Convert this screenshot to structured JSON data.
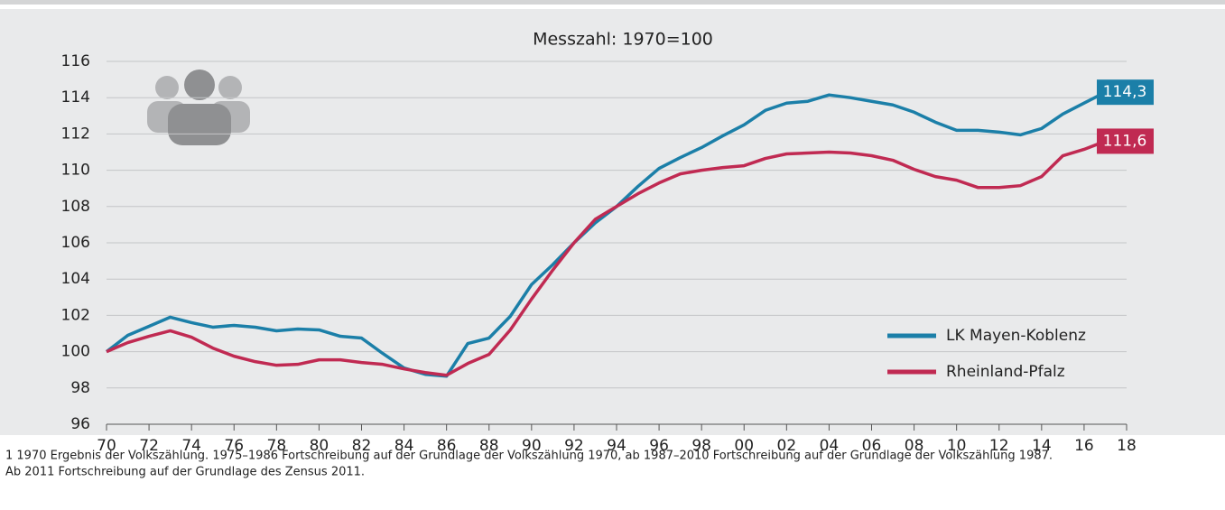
{
  "chart_data": {
    "type": "line",
    "title": "Messzahl: 1970=100",
    "x": [
      1970,
      1971,
      1972,
      1973,
      1974,
      1975,
      1976,
      1977,
      1978,
      1979,
      1980,
      1981,
      1982,
      1983,
      1984,
      1985,
      1986,
      1987,
      1988,
      1989,
      1990,
      1991,
      1992,
      1993,
      1994,
      1995,
      1996,
      1997,
      1998,
      1999,
      2000,
      2001,
      2002,
      2003,
      2004,
      2005,
      2006,
      2007,
      2008,
      2009,
      2010,
      2011,
      2012,
      2013,
      2014,
      2015,
      2016,
      2017
    ],
    "series": [
      {
        "name": "LK Mayen-Koblenz",
        "color": "#1b7fa8",
        "values": [
          100,
          100.9,
          101.4,
          101.9,
          101.6,
          101.35,
          101.45,
          101.35,
          101.15,
          101.25,
          101.2,
          100.85,
          100.75,
          99.9,
          99.1,
          98.75,
          98.65,
          100.45,
          100.75,
          101.95,
          103.7,
          104.8,
          106.0,
          107.1,
          108.0,
          109.1,
          110.1,
          110.7,
          111.25,
          111.9,
          112.5,
          113.3,
          113.7,
          113.8,
          114.15,
          114.0,
          113.8,
          113.6,
          113.2,
          112.65,
          112.2,
          112.2,
          112.1,
          111.95,
          112.3,
          113.1,
          113.7,
          114.3
        ],
        "value_labels": [
          null,
          null,
          null,
          null,
          null,
          null,
          null,
          null,
          null,
          null,
          null,
          null,
          null,
          null,
          null,
          null,
          null,
          null,
          null,
          null,
          null,
          null,
          null,
          null,
          null,
          null,
          null,
          null,
          null,
          null,
          null,
          null,
          null,
          null,
          null,
          null,
          null,
          null,
          null,
          null,
          null,
          null,
          null,
          null,
          null,
          null,
          null,
          "114,3"
        ]
      },
      {
        "name": "Rheinland-Pfalz",
        "color": "#c02a52",
        "values": [
          100,
          100.5,
          100.85,
          101.15,
          100.8,
          100.2,
          99.75,
          99.45,
          99.25,
          99.3,
          99.55,
          99.55,
          99.4,
          99.3,
          99.05,
          98.85,
          98.7,
          99.35,
          99.85,
          101.2,
          102.9,
          104.5,
          106.0,
          107.3,
          108.0,
          108.7,
          109.3,
          109.8,
          110.0,
          110.15,
          110.25,
          110.65,
          110.9,
          110.95,
          111.0,
          110.95,
          110.8,
          110.55,
          110.05,
          109.65,
          109.45,
          109.05,
          109.05,
          109.15,
          109.65,
          110.8,
          111.15,
          111.6
        ],
        "value_labels": [
          null,
          null,
          null,
          null,
          null,
          null,
          null,
          null,
          null,
          null,
          null,
          null,
          null,
          null,
          null,
          null,
          null,
          null,
          null,
          null,
          null,
          null,
          null,
          null,
          null,
          null,
          null,
          null,
          null,
          null,
          null,
          null,
          null,
          null,
          null,
          null,
          null,
          null,
          null,
          null,
          null,
          null,
          null,
          null,
          null,
          null,
          null,
          "111,6"
        ]
      }
    ],
    "xlim": [
      1970,
      2018
    ],
    "xticks": [
      {
        "value": 1970,
        "label": "70"
      },
      {
        "value": 1972,
        "label": "72"
      },
      {
        "value": 1974,
        "label": "74"
      },
      {
        "value": 1976,
        "label": "76"
      },
      {
        "value": 1978,
        "label": "78"
      },
      {
        "value": 1980,
        "label": "80"
      },
      {
        "value": 1982,
        "label": "82"
      },
      {
        "value": 1984,
        "label": "84"
      },
      {
        "value": 1986,
        "label": "86"
      },
      {
        "value": 1988,
        "label": "88"
      },
      {
        "value": 1990,
        "label": "90"
      },
      {
        "value": 1992,
        "label": "92"
      },
      {
        "value": 1994,
        "label": "94"
      },
      {
        "value": 1996,
        "label": "96"
      },
      {
        "value": 1998,
        "label": "98"
      },
      {
        "value": 2000,
        "label": "00"
      },
      {
        "value": 2002,
        "label": "02"
      },
      {
        "value": 2004,
        "label": "04"
      },
      {
        "value": 2006,
        "label": "06"
      },
      {
        "value": 2008,
        "label": "08"
      },
      {
        "value": 2010,
        "label": "10"
      },
      {
        "value": 2012,
        "label": "12"
      },
      {
        "value": 2014,
        "label": "14"
      },
      {
        "value": 2016,
        "label": "16"
      },
      {
        "value": 2018,
        "label": "18"
      }
    ],
    "ylim": [
      96,
      116
    ],
    "yticks": [
      96,
      98,
      100,
      102,
      104,
      106,
      108,
      110,
      112,
      114,
      116
    ],
    "grid": true,
    "legend": "lower right",
    "footnote": [
      "1 1970 Ergebnis der Volkszählung. 1975–1986 Fortschreibung auf der Grundlage der Volkszählung 1970, ab 1987–2010 Fortschreibung auf der Grundlage der Volkszählung 1987.",
      "Ab 2011 Fortschreibung auf der Grundlage des Zensus 2011."
    ]
  }
}
